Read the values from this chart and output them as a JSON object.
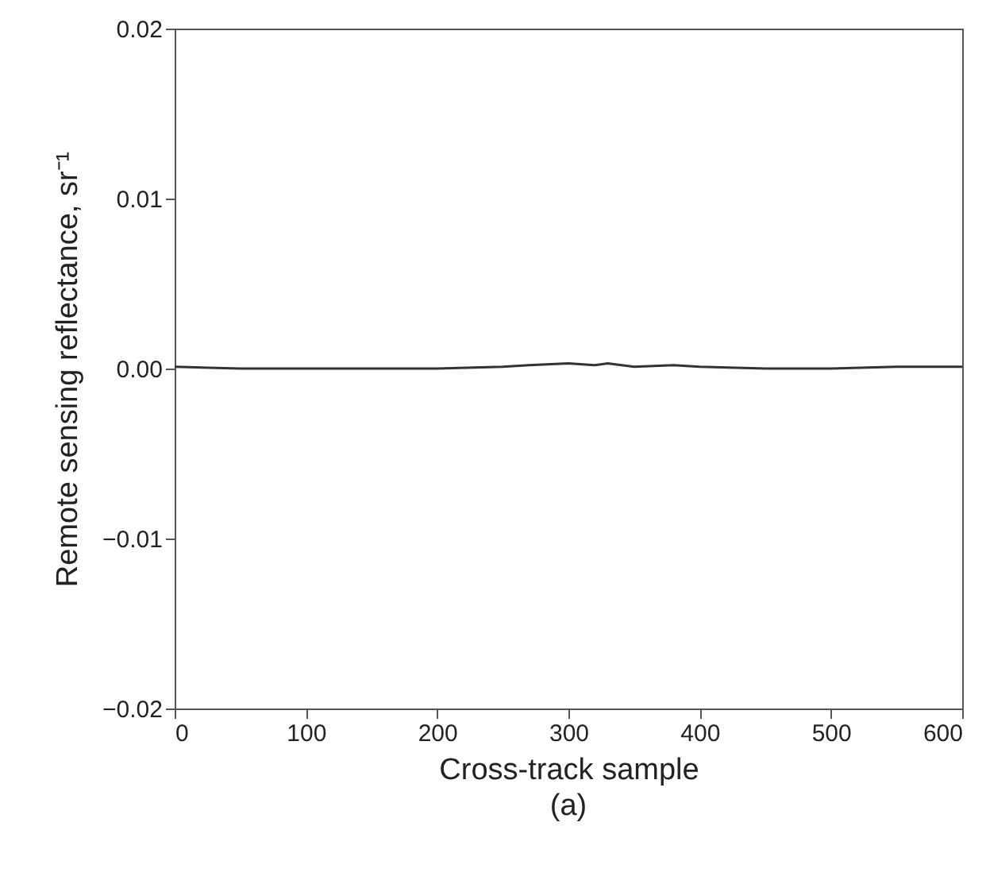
{
  "chart_data": {
    "type": "line",
    "xlabel": "Cross-track sample",
    "ylabel": "Remote sensing reflectance, sr⁻¹",
    "annotations": [
      "(a)"
    ],
    "x": [
      0,
      50,
      100,
      150,
      200,
      250,
      270,
      300,
      320,
      330,
      350,
      380,
      400,
      450,
      500,
      550,
      600
    ],
    "series": [
      {
        "color": "#333333",
        "values": [
          0.0001,
          0.0,
          0.0,
          0.0,
          0.0,
          0.0001,
          0.0002,
          0.0003,
          0.0002,
          0.0003,
          0.0001,
          0.0002,
          0.0001,
          0.0,
          0.0,
          0.0001,
          0.0001
        ]
      }
    ],
    "xlim": [
      0,
      600
    ],
    "xticks": [
      0,
      100,
      200,
      300,
      400,
      500,
      600
    ],
    "ylim": [
      -0.02,
      0.02
    ],
    "yticks": [
      -0.02,
      -0.01,
      {
        "value": 0,
        "label": "0.00"
      },
      0.01,
      0.02
    ],
    "grid": false,
    "marker": "none",
    "line_style": "solid"
  }
}
